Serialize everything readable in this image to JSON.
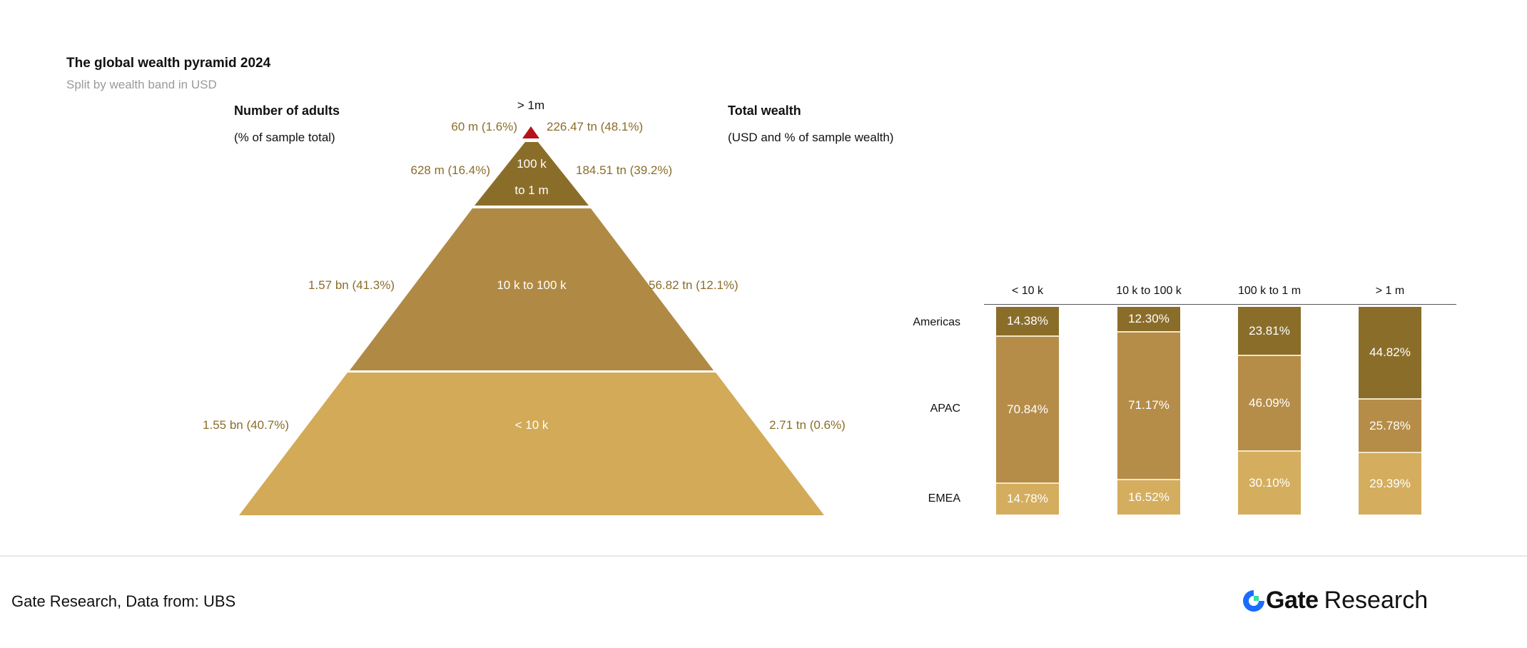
{
  "header": {
    "title": "The global wealth pyramid 2024",
    "subtitle": "Split by wealth band in USD"
  },
  "colors": {
    "dark": "#8b6d2a",
    "mid": "#b58d48",
    "light": "#d4ae5e",
    "top": "#b5121b",
    "label": "#8b6d2a"
  },
  "chart_data": [
    {
      "type": "pyramid",
      "left_header": "Number of adults",
      "left_subheader": "(% of sample total)",
      "right_header": "Total wealth",
      "right_subheader": "(USD and % of sample wealth)",
      "bands": [
        {
          "label": "> 1m",
          "adults": "60 m (1.6%)",
          "wealth": "226.47 tn (48.1%)"
        },
        {
          "label": "100 k",
          "label2": "to 1 m",
          "adults": "628 m (16.4%)",
          "wealth": "184.51 tn (39.2%)"
        },
        {
          "label": "10 k to 100 k",
          "adults": "1.57 bn (41.3%)",
          "wealth": "56.82 tn (12.1%)"
        },
        {
          "label": "< 10 k",
          "adults": "1.55 bn (40.7%)",
          "wealth": "2.71 tn (0.6%)"
        }
      ]
    },
    {
      "type": "bar",
      "stacked": true,
      "categories": [
        "< 10 k",
        "10 k to 100 k",
        "100 k to 1 m",
        "> 1 m"
      ],
      "series": [
        {
          "name": "Americas",
          "values": [
            14.38,
            12.3,
            23.81,
            44.82
          ]
        },
        {
          "name": "APAC",
          "values": [
            70.84,
            71.17,
            46.09,
            25.78
          ]
        },
        {
          "name": "EMEA",
          "values": [
            14.78,
            16.52,
            30.1,
            29.39
          ]
        }
      ],
      "ylim": [
        0,
        100
      ],
      "value_suffix": "%"
    }
  ],
  "footer": {
    "source": "Gate Research, Data from: UBS",
    "logo_text": "Gate",
    "logo_suffix": "Research"
  }
}
